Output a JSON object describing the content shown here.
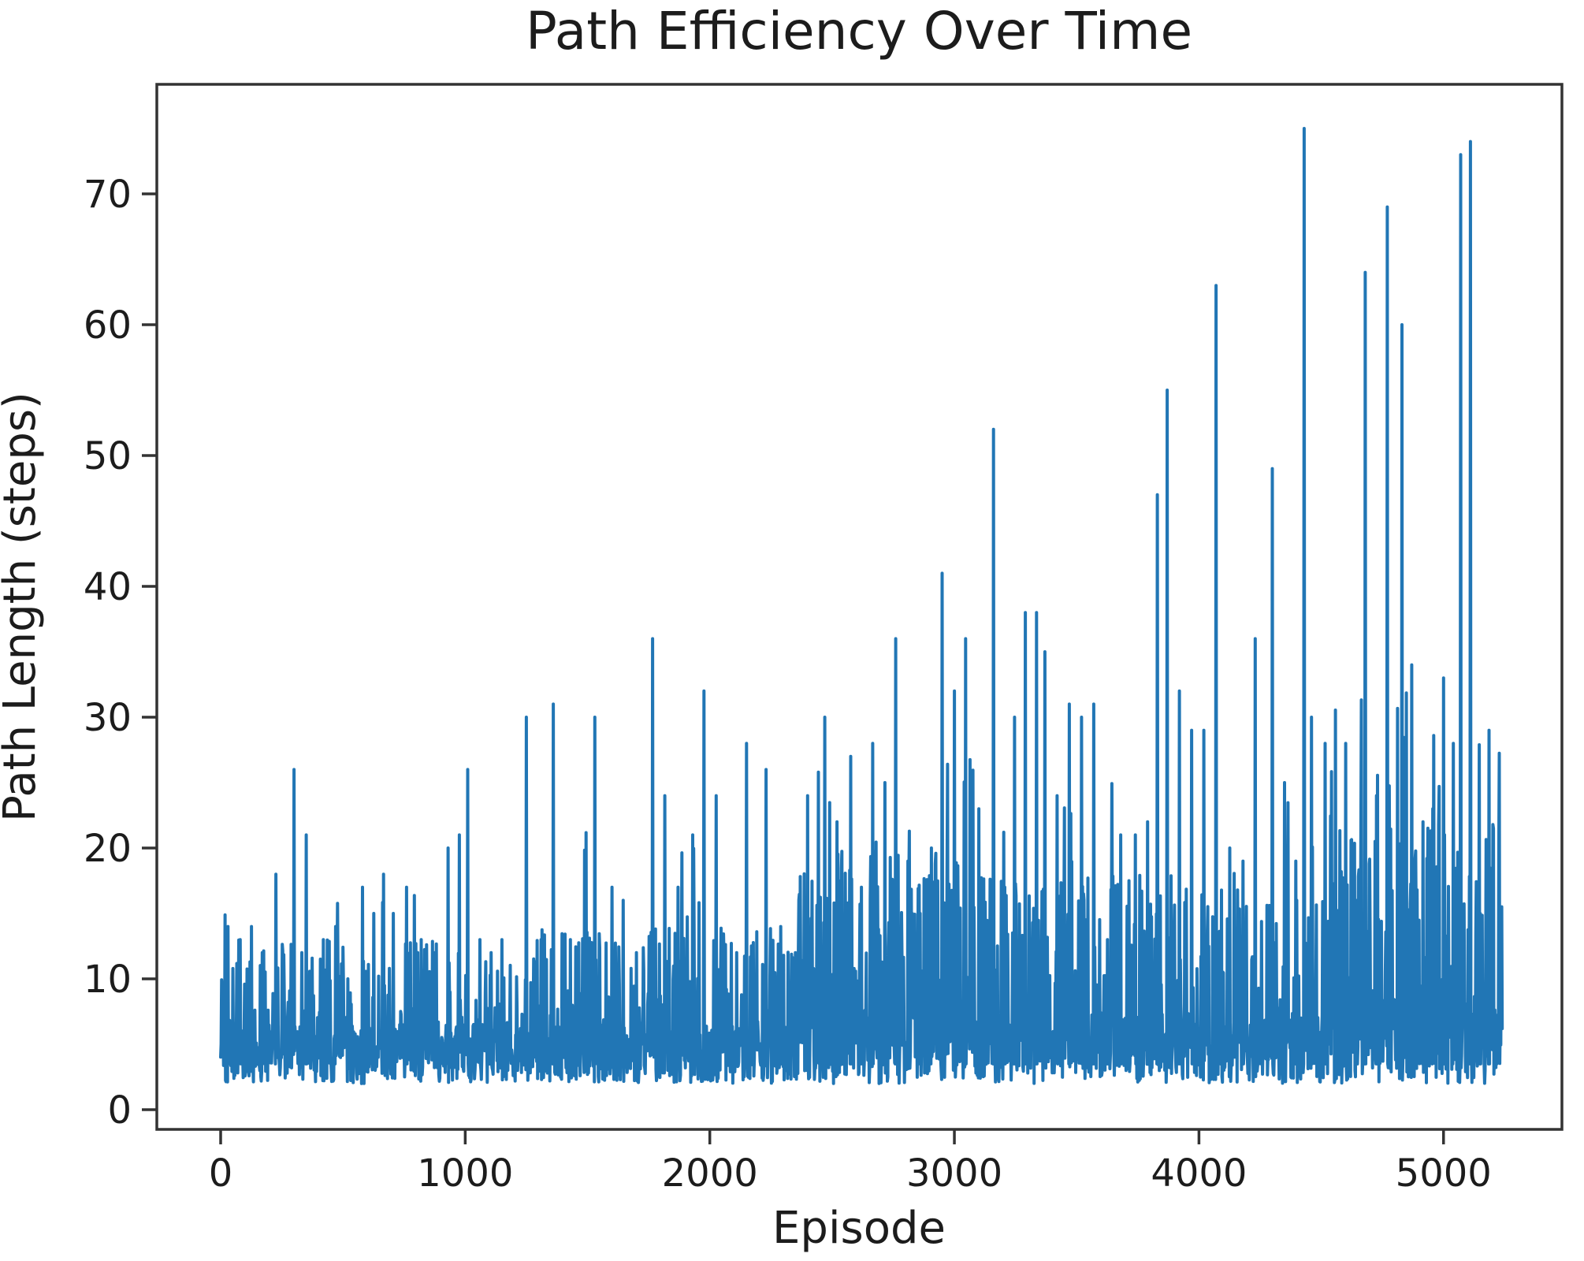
{
  "chart_data": {
    "type": "line",
    "title": "Path Efficiency Over Time",
    "xlabel": "Episode",
    "ylabel": "Path Length (steps)",
    "xticks": [
      0,
      1000,
      2000,
      3000,
      4000,
      5000
    ],
    "yticks": [
      0,
      10,
      20,
      30,
      40,
      50,
      60,
      70
    ],
    "xlim": [
      -260,
      5500
    ],
    "ylim": [
      -1.5,
      78.4
    ],
    "x_range_of_data": [
      0,
      5240
    ],
    "value_min": 2,
    "value_max": 75,
    "grid": false,
    "legend": "none",
    "line_color": "#2176b5",
    "spine_color": "#333333",
    "text_color": "#1c1c1c",
    "background_color": "#ffffff",
    "peaks": [
      [
        30,
        14
      ],
      [
        80,
        13
      ],
      [
        125,
        14
      ],
      [
        170,
        12
      ],
      [
        225,
        18
      ],
      [
        300,
        26
      ],
      [
        350,
        21
      ],
      [
        420,
        13
      ],
      [
        470,
        14
      ],
      [
        520,
        10
      ],
      [
        580,
        17
      ],
      [
        625,
        15
      ],
      [
        665,
        18
      ],
      [
        705,
        15
      ],
      [
        760,
        17
      ],
      [
        820,
        13
      ],
      [
        875,
        12
      ],
      [
        930,
        20
      ],
      [
        975,
        21
      ],
      [
        1010,
        26
      ],
      [
        1060,
        13
      ],
      [
        1105,
        12
      ],
      [
        1150,
        13
      ],
      [
        1250,
        30
      ],
      [
        1310,
        13
      ],
      [
        1360,
        31
      ],
      [
        1430,
        13
      ],
      [
        1530,
        30
      ],
      [
        1600,
        17
      ],
      [
        1645,
        16
      ],
      [
        1700,
        12
      ],
      [
        1765,
        36
      ],
      [
        1815,
        24
      ],
      [
        1870,
        17
      ],
      [
        1930,
        21
      ],
      [
        1975,
        32
      ],
      [
        2025,
        24
      ],
      [
        2110,
        12
      ],
      [
        2150,
        28
      ],
      [
        2230,
        26
      ],
      [
        2290,
        14
      ],
      [
        2350,
        12
      ],
      [
        2400,
        24
      ],
      [
        2470,
        30
      ],
      [
        2520,
        22
      ],
      [
        2575,
        27
      ],
      [
        2620,
        17
      ],
      [
        2665,
        28
      ],
      [
        2715,
        25
      ],
      [
        2760,
        36
      ],
      [
        2810,
        19
      ],
      [
        2860,
        15
      ],
      [
        2905,
        20
      ],
      [
        2950,
        41
      ],
      [
        3000,
        32
      ],
      [
        3045,
        36
      ],
      [
        3100,
        23
      ],
      [
        3160,
        52
      ],
      [
        3205,
        17
      ],
      [
        3245,
        30
      ],
      [
        3290,
        38
      ],
      [
        3335,
        38
      ],
      [
        3370,
        35
      ],
      [
        3420,
        24
      ],
      [
        3470,
        31
      ],
      [
        3520,
        30
      ],
      [
        3570,
        31
      ],
      [
        3625,
        13
      ],
      [
        3680,
        21
      ],
      [
        3740,
        21
      ],
      [
        3790,
        22
      ],
      [
        3830,
        47
      ],
      [
        3870,
        55
      ],
      [
        3920,
        32
      ],
      [
        3970,
        29
      ],
      [
        4020,
        29
      ],
      [
        4070,
        63
      ],
      [
        4125,
        20
      ],
      [
        4180,
        19
      ],
      [
        4230,
        36
      ],
      [
        4300,
        49
      ],
      [
        4350,
        25
      ],
      [
        4395,
        19
      ],
      [
        4430,
        75
      ],
      [
        4460,
        30
      ],
      [
        4515,
        28
      ],
      [
        4600,
        28
      ],
      [
        4645,
        16
      ],
      [
        4680,
        64
      ],
      [
        4725,
        24
      ],
      [
        4770,
        69
      ],
      [
        4830,
        60
      ],
      [
        4870,
        34
      ],
      [
        4915,
        22
      ],
      [
        4955,
        23
      ],
      [
        5000,
        33
      ],
      [
        5040,
        28
      ],
      [
        5070,
        73
      ],
      [
        5110,
        74
      ],
      [
        5150,
        15
      ],
      [
        5185,
        29
      ],
      [
        5215,
        6
      ]
    ],
    "noise": {
      "seed": 42,
      "step": 2,
      "x_max": 5240,
      "base_min": 2,
      "segments": [
        {
          "from": 0,
          "to": 1300,
          "base_max": 6.5,
          "p_mid": 0.2,
          "mid_max": 13,
          "p_high": 0.008,
          "high_max": 17
        },
        {
          "from": 1300,
          "to": 2350,
          "base_max": 6.5,
          "p_mid": 0.18,
          "mid_max": 14,
          "p_high": 0.012,
          "high_max": 22
        },
        {
          "from": 2350,
          "to": 3100,
          "base_max": 8.0,
          "p_mid": 0.32,
          "mid_max": 20,
          "p_high": 0.03,
          "high_max": 27
        },
        {
          "from": 3100,
          "to": 3900,
          "base_max": 7.5,
          "p_mid": 0.3,
          "mid_max": 18,
          "p_high": 0.025,
          "high_max": 26
        },
        {
          "from": 3900,
          "to": 4550,
          "base_max": 7.5,
          "p_mid": 0.24,
          "mid_max": 17,
          "p_high": 0.02,
          "high_max": 26
        },
        {
          "from": 4550,
          "to": 5241,
          "base_max": 8.5,
          "p_mid": 0.34,
          "mid_max": 22,
          "p_high": 0.035,
          "high_max": 32
        }
      ]
    }
  }
}
